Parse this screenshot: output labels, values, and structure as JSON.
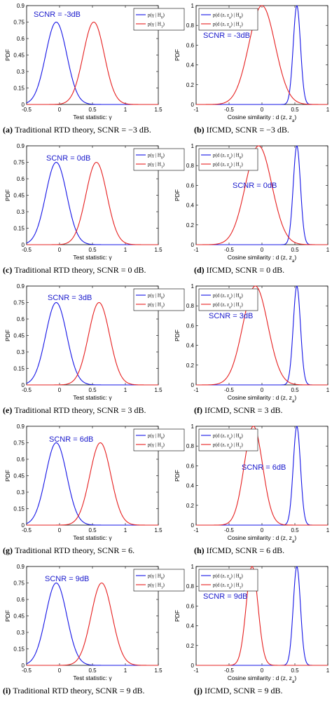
{
  "colors": {
    "h0": "#1515e6",
    "h1": "#e62020",
    "scnr_text": "#1a1acc"
  },
  "chart_data": [
    {
      "type": "line",
      "panel": "a",
      "xlabel": "Test statistic: γ",
      "ylabel": "PDF",
      "xlim": [
        -0.5,
        1.5
      ],
      "ylim": [
        0,
        0.9
      ],
      "xticks": [
        "-0.5",
        "0",
        "0.5",
        "1",
        "1.5"
      ],
      "yticks": [
        "0",
        "0.15",
        "0.3",
        "0.45",
        "0.6",
        "0.75",
        "0.9"
      ],
      "annotation": "SCNR = -3dB",
      "legend_position": "top-right",
      "legend": [
        "p(γ | H0)",
        "p(γ | H1)"
      ],
      "series": [
        {
          "name": "p(γ | H0)",
          "color": "blue",
          "peak_x": -0.05,
          "peak_y": 0.75,
          "sigma": 0.16
        },
        {
          "name": "p(γ | H1)",
          "color": "red",
          "peak_x": 0.52,
          "peak_y": 0.75,
          "sigma": 0.16
        }
      ],
      "caption_label": "(a)",
      "caption_text": "Traditional RTD theory, SCNR = −3 dB."
    },
    {
      "type": "line",
      "panel": "b",
      "xlabel": "Cosine similarity : d (z, za)",
      "ylabel": "PDF",
      "xlim": [
        -1,
        1
      ],
      "ylim": [
        0,
        1
      ],
      "xticks": [
        "-1",
        "-0.5",
        "0",
        "0.5",
        "1"
      ],
      "yticks": [
        "0",
        "0.2",
        "0.4",
        "0.6",
        "0.8",
        "1"
      ],
      "annotation": "SCNR = -3dB",
      "legend_position": "top-left",
      "legend": [
        "p(d (z, za) | H0)",
        "p(d (z, za) | H1)"
      ],
      "series": [
        {
          "name": "p(d (z, za) | H0)",
          "color": "blue",
          "peak_x": 0.53,
          "peak_y": 1.0,
          "sigma": 0.055
        },
        {
          "name": "p(d (z, za) | H1)",
          "color": "red",
          "peak_x": 0.0,
          "peak_y": 1.0,
          "sigma": 0.2
        }
      ],
      "caption_label": "(b)",
      "caption_text": "IfCMD, SCNR = −3 dB."
    },
    {
      "type": "line",
      "panel": "c",
      "xlabel": "Test statistic: γ",
      "ylabel": "PDF",
      "xlim": [
        -0.5,
        1.5
      ],
      "ylim": [
        0,
        0.9
      ],
      "xticks": [
        "-0.5",
        "0",
        "0.5",
        "1",
        "1.5"
      ],
      "yticks": [
        "0",
        "0.15",
        "0.3",
        "0.45",
        "0.6",
        "0.75",
        "0.9"
      ],
      "annotation": "SCNR = 0dB",
      "legend_position": "top-right",
      "legend": [
        "p(γ | H0)",
        "p(γ | H1)"
      ],
      "series": [
        {
          "name": "p(γ | H0)",
          "color": "blue",
          "peak_x": -0.05,
          "peak_y": 0.75,
          "sigma": 0.16
        },
        {
          "name": "p(γ | H1)",
          "color": "red",
          "peak_x": 0.56,
          "peak_y": 0.75,
          "sigma": 0.16
        }
      ],
      "caption_label": "(c)",
      "caption_text": "Traditional RTD theory, SCNR = 0 dB."
    },
    {
      "type": "line",
      "panel": "d",
      "xlabel": "Cosine similarity : d (z, za)",
      "ylabel": "PDF",
      "xlim": [
        -1,
        1
      ],
      "ylim": [
        0,
        1
      ],
      "xticks": [
        "-1",
        "-0.5",
        "0",
        "0.5",
        "1"
      ],
      "yticks": [
        "0",
        "0.2",
        "0.4",
        "0.6",
        "0.8",
        "1"
      ],
      "annotation": "SCNR = 0dB",
      "legend_position": "top-left",
      "legend": [
        "p(d (z, za) | H0)",
        "p(d (z, za) | H1)"
      ],
      "series": [
        {
          "name": "p(d (z, za) | H0)",
          "color": "blue",
          "peak_x": 0.53,
          "peak_y": 1.0,
          "sigma": 0.055
        },
        {
          "name": "p(d (z, za) | H1)",
          "color": "red",
          "peak_x": -0.05,
          "peak_y": 1.0,
          "sigma": 0.2
        }
      ],
      "caption_label": "(d)",
      "caption_text": "IfCMD, SCNR = 0 dB."
    },
    {
      "type": "line",
      "panel": "e",
      "xlabel": "Test statistic: γ",
      "ylabel": "PDF",
      "xlim": [
        -0.5,
        1.5
      ],
      "ylim": [
        0,
        0.9
      ],
      "xticks": [
        "-0.5",
        "0",
        "0.5",
        "1",
        "1.5"
      ],
      "yticks": [
        "0",
        "0.15",
        "0.3",
        "0.45",
        "0.6",
        "0.75",
        "0.9"
      ],
      "annotation": "SCNR = 3dB",
      "legend_position": "top-right",
      "legend": [
        "p(γ | H0)",
        "p(γ | H1)"
      ],
      "series": [
        {
          "name": "p(γ | H0)",
          "color": "blue",
          "peak_x": -0.05,
          "peak_y": 0.75,
          "sigma": 0.16
        },
        {
          "name": "p(γ | H1)",
          "color": "red",
          "peak_x": 0.6,
          "peak_y": 0.75,
          "sigma": 0.16
        }
      ],
      "caption_label": "(e)",
      "caption_text": "Traditional RTD theory, SCNR = 3 dB."
    },
    {
      "type": "line",
      "panel": "f",
      "xlabel": "Cosine similarity : d (z, za)",
      "ylabel": "PDF",
      "xlim": [
        -1,
        1
      ],
      "ylim": [
        0,
        1
      ],
      "xticks": [
        "-1",
        "-0.5",
        "0",
        "0.5",
        "1"
      ],
      "yticks": [
        "0",
        "0.2",
        "0.4",
        "0.6",
        "0.8",
        "1"
      ],
      "annotation": "SCNR = 3dB",
      "legend_position": "top-left",
      "legend": [
        "p(d (z, za) | H0)",
        "p(d (z, za) | H1)"
      ],
      "series": [
        {
          "name": "p(d (z, za) | H0)",
          "color": "blue",
          "peak_x": 0.53,
          "peak_y": 1.0,
          "sigma": 0.055
        },
        {
          "name": "p(d (z, za) | H1)",
          "color": "red",
          "peak_x": -0.1,
          "peak_y": 1.0,
          "sigma": 0.19
        }
      ],
      "caption_label": "(f)",
      "caption_text": "IfCMD, SCNR = 3 dB."
    },
    {
      "type": "line",
      "panel": "g",
      "xlabel": "Test statistic: γ",
      "ylabel": "PDF",
      "xlim": [
        -0.5,
        1.5
      ],
      "ylim": [
        0,
        0.9
      ],
      "xticks": [
        "-0.5",
        "0",
        "0.5",
        "1",
        "1.5"
      ],
      "yticks": [
        "0",
        "0.15",
        "0.3",
        "0.45",
        "0.6",
        "0.75",
        "0.9"
      ],
      "annotation": "SCNR = 6dB",
      "legend_position": "top-right",
      "legend": [
        "p(γ | H0)",
        "p(γ | H1)"
      ],
      "series": [
        {
          "name": "p(γ | H0)",
          "color": "blue",
          "peak_x": -0.05,
          "peak_y": 0.75,
          "sigma": 0.16
        },
        {
          "name": "p(γ | H1)",
          "color": "red",
          "peak_x": 0.62,
          "peak_y": 0.75,
          "sigma": 0.16
        }
      ],
      "caption_label": "(g)",
      "caption_text": "Traditional RTD theory, SCNR = 6."
    },
    {
      "type": "line",
      "panel": "h",
      "xlabel": "Cosine similarity : d (z, za)",
      "ylabel": "PDF",
      "xlim": [
        -1,
        1
      ],
      "ylim": [
        0,
        1
      ],
      "xticks": [
        "-1",
        "-0.5",
        "0",
        "0.5",
        "1"
      ],
      "yticks": [
        "0",
        "0.2",
        "0.4",
        "0.6",
        "0.8",
        "1"
      ],
      "annotation": "SCNR = 6dB",
      "legend_position": "top-left",
      "legend": [
        "p(d (z, za) | H0)",
        "p(d (z, za) | H1)"
      ],
      "series": [
        {
          "name": "p(d (z, za) | H0)",
          "color": "blue",
          "peak_x": 0.53,
          "peak_y": 1.0,
          "sigma": 0.055
        },
        {
          "name": "p(d (z, za) | H1)",
          "color": "red",
          "peak_x": -0.13,
          "peak_y": 1.0,
          "sigma": 0.14
        }
      ],
      "caption_label": "(h)",
      "caption_text": "IfCMD, SCNR = 6 dB."
    },
    {
      "type": "line",
      "panel": "i",
      "xlabel": "Test statistic: γ",
      "ylabel": "PDF",
      "xlim": [
        -0.5,
        1.5
      ],
      "ylim": [
        0,
        0.9
      ],
      "xticks": [
        "-0.5",
        "0",
        "0.5",
        "1",
        "1.5"
      ],
      "yticks": [
        "0",
        "0.15",
        "0.3",
        "0.45",
        "0.6",
        "0.75",
        "0.9"
      ],
      "annotation": "SCNR = 9dB",
      "legend_position": "top-right",
      "legend": [
        "p(γ | H0)",
        "p(γ | H1)"
      ],
      "series": [
        {
          "name": "p(γ | H0)",
          "color": "blue",
          "peak_x": -0.05,
          "peak_y": 0.75,
          "sigma": 0.16
        },
        {
          "name": "p(γ | H1)",
          "color": "red",
          "peak_x": 0.64,
          "peak_y": 0.75,
          "sigma": 0.16
        }
      ],
      "caption_label": "(i)",
      "caption_text": "Traditional RTD theory, SCNR = 9 dB."
    },
    {
      "type": "line",
      "panel": "j",
      "xlabel": "Cosine similarity : d (z, za)",
      "ylabel": "PDF",
      "xlim": [
        -1,
        1
      ],
      "ylim": [
        0,
        1
      ],
      "xticks": [
        "-1",
        "-0.5",
        "0",
        "0.5",
        "1"
      ],
      "yticks": [
        "0",
        "0.2",
        "0.4",
        "0.6",
        "0.8",
        "1"
      ],
      "annotation": "SCNR = 9dB",
      "legend_position": "top-left",
      "legend": [
        "p(d (z, za) | H0)",
        "p(d (z, za) | H1)"
      ],
      "series": [
        {
          "name": "p(d (z, za) | H0)",
          "color": "blue",
          "peak_x": 0.53,
          "peak_y": 1.0,
          "sigma": 0.055
        },
        {
          "name": "p(d (z, za) | H1)",
          "color": "red",
          "peak_x": -0.15,
          "peak_y": 1.0,
          "sigma": 0.09
        }
      ],
      "caption_label": "(j)",
      "caption_text": "IfCMD, SCNR = 9 dB."
    }
  ]
}
